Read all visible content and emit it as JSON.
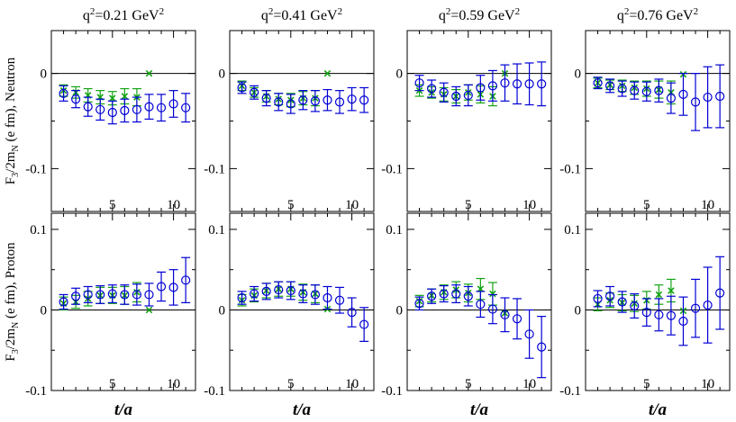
{
  "chart_data": {
    "type": "scatter",
    "columns": [
      {
        "q2_value": "0.21"
      },
      {
        "q2_value": "0.41"
      },
      {
        "q2_value": "0.59"
      },
      {
        "q2_value": "0.76"
      }
    ],
    "q2_prefix": "q",
    "q2_exponent": "2",
    "q2_unit": "GeV",
    "unit_exponent": "2",
    "x_label": "t/a",
    "x_ticks": [
      "5",
      "10"
    ],
    "xlim": [
      0,
      11.8
    ],
    "rows": [
      {
        "name": "Neutron",
        "ylabel_main": "F",
        "ylabel_sub3": "3",
        "ylabel_mid": "/2m",
        "ylabel_subN": "N",
        "ylabel_rest": " (e fm), Neutron",
        "ylim": [
          -0.145,
          0.045
        ],
        "y_ticks": [
          "0",
          "-0.1"
        ],
        "y_tick_values": [
          0,
          -0.1
        ]
      },
      {
        "name": "Proton",
        "ylabel_main": "F",
        "ylabel_sub3": "3",
        "ylabel_mid": "/2m",
        "ylabel_subN": "N",
        "ylabel_rest": " (e fm), Proton",
        "ylim": [
          -0.1,
          0.12
        ],
        "y_ticks": [
          "0.1",
          "0",
          "-0.1"
        ],
        "y_tick_values": [
          0.1,
          0,
          -0.1
        ]
      }
    ],
    "series_styles": [
      {
        "name": "blue circles",
        "color": "#0000d4",
        "marker": "circle"
      },
      {
        "name": "green crosses",
        "color": "#13a313",
        "marker": "x"
      }
    ],
    "panels": [
      {
        "row": 0,
        "col": 0,
        "blue": [
          [
            1,
            -0.021,
            0.008
          ],
          [
            2,
            -0.027,
            0.009
          ],
          [
            3,
            -0.035,
            0.01
          ],
          [
            4,
            -0.038,
            0.011
          ],
          [
            5,
            -0.041,
            0.012
          ],
          [
            6,
            -0.039,
            0.012
          ],
          [
            7,
            -0.038,
            0.013
          ],
          [
            8,
            -0.035,
            0.013
          ],
          [
            9,
            -0.036,
            0.014
          ],
          [
            10,
            -0.032,
            0.014
          ],
          [
            11,
            -0.036,
            0.015
          ]
        ],
        "green": [
          [
            1,
            -0.018,
            0.006
          ],
          [
            2,
            -0.02,
            0.006
          ],
          [
            3,
            -0.023,
            0.007
          ],
          [
            4,
            -0.025,
            0.007
          ],
          [
            5,
            -0.026,
            0.007
          ],
          [
            6,
            -0.024,
            0.008
          ],
          [
            7,
            -0.025,
            0.009
          ],
          [
            8,
            0.0,
            0.0
          ]
        ]
      },
      {
        "row": 0,
        "col": 1,
        "blue": [
          [
            1,
            -0.015,
            0.006
          ],
          [
            2,
            -0.02,
            0.007
          ],
          [
            3,
            -0.026,
            0.008
          ],
          [
            4,
            -0.03,
            0.009
          ],
          [
            5,
            -0.032,
            0.01
          ],
          [
            6,
            -0.028,
            0.01
          ],
          [
            7,
            -0.029,
            0.011
          ],
          [
            8,
            -0.028,
            0.011
          ],
          [
            9,
            -0.03,
            0.012
          ],
          [
            10,
            -0.027,
            0.012
          ],
          [
            11,
            -0.028,
            0.013
          ]
        ],
        "green": [
          [
            1,
            -0.013,
            0.005
          ],
          [
            2,
            -0.02,
            0.005
          ],
          [
            3,
            -0.024,
            0.006
          ],
          [
            4,
            -0.027,
            0.006
          ],
          [
            5,
            -0.028,
            0.007
          ],
          [
            6,
            -0.026,
            0.007
          ],
          [
            7,
            -0.026,
            0.008
          ],
          [
            8,
            0.0,
            0.0
          ]
        ]
      },
      {
        "row": 0,
        "col": 2,
        "blue": [
          [
            1,
            -0.01,
            0.008
          ],
          [
            2,
            -0.016,
            0.009
          ],
          [
            3,
            -0.02,
            0.01
          ],
          [
            4,
            -0.024,
            0.01
          ],
          [
            5,
            -0.023,
            0.011
          ],
          [
            6,
            -0.015,
            0.013
          ],
          [
            7,
            -0.013,
            0.016
          ],
          [
            8,
            -0.01,
            0.019
          ],
          [
            9,
            -0.011,
            0.021
          ],
          [
            10,
            -0.011,
            0.022
          ],
          [
            11,
            -0.011,
            0.023
          ]
        ],
        "green": [
          [
            1,
            -0.018,
            0.006
          ],
          [
            2,
            -0.02,
            0.006
          ],
          [
            3,
            -0.022,
            0.007
          ],
          [
            4,
            -0.024,
            0.007
          ],
          [
            5,
            -0.02,
            0.008
          ],
          [
            6,
            -0.022,
            0.009
          ],
          [
            7,
            -0.024,
            0.01
          ],
          [
            8,
            0.0,
            0.0
          ]
        ]
      },
      {
        "row": 0,
        "col": 3,
        "blue": [
          [
            1,
            -0.01,
            0.006
          ],
          [
            2,
            -0.013,
            0.007
          ],
          [
            3,
            -0.016,
            0.008
          ],
          [
            4,
            -0.018,
            0.009
          ],
          [
            5,
            -0.019,
            0.01
          ],
          [
            6,
            -0.018,
            0.012
          ],
          [
            7,
            -0.026,
            0.016
          ],
          [
            8,
            -0.022,
            0.022
          ],
          [
            9,
            -0.03,
            0.03
          ],
          [
            10,
            -0.025,
            0.032
          ],
          [
            11,
            -0.024,
            0.033
          ]
        ],
        "green": [
          [
            1,
            -0.01,
            0.005
          ],
          [
            2,
            -0.012,
            0.005
          ],
          [
            3,
            -0.013,
            0.006
          ],
          [
            4,
            -0.015,
            0.007
          ],
          [
            5,
            -0.016,
            0.008
          ],
          [
            6,
            -0.017,
            0.009
          ],
          [
            7,
            -0.02,
            0.012
          ],
          [
            8,
            -0.001,
            0.0
          ]
        ]
      },
      {
        "row": 1,
        "col": 0,
        "blue": [
          [
            1,
            0.01,
            0.009
          ],
          [
            2,
            0.017,
            0.01
          ],
          [
            3,
            0.019,
            0.01
          ],
          [
            4,
            0.019,
            0.011
          ],
          [
            5,
            0.02,
            0.011
          ],
          [
            6,
            0.019,
            0.012
          ],
          [
            7,
            0.019,
            0.013
          ],
          [
            8,
            0.019,
            0.014
          ],
          [
            9,
            0.029,
            0.018
          ],
          [
            10,
            0.028,
            0.022
          ],
          [
            11,
            0.037,
            0.028
          ]
        ],
        "green": [
          [
            1,
            0.008,
            0.008
          ],
          [
            2,
            0.01,
            0.008
          ],
          [
            3,
            0.014,
            0.009
          ],
          [
            4,
            0.018,
            0.01
          ],
          [
            5,
            0.018,
            0.01
          ],
          [
            6,
            0.018,
            0.011
          ],
          [
            7,
            0.022,
            0.012
          ],
          [
            8,
            0.0,
            0.0
          ]
        ]
      },
      {
        "row": 1,
        "col": 1,
        "blue": [
          [
            1,
            0.015,
            0.008
          ],
          [
            2,
            0.02,
            0.009
          ],
          [
            3,
            0.023,
            0.01
          ],
          [
            4,
            0.025,
            0.01
          ],
          [
            5,
            0.024,
            0.011
          ],
          [
            6,
            0.02,
            0.011
          ],
          [
            7,
            0.019,
            0.012
          ],
          [
            8,
            0.015,
            0.014
          ],
          [
            9,
            0.012,
            0.016
          ],
          [
            10,
            -0.003,
            0.018
          ],
          [
            11,
            -0.018,
            0.021
          ]
        ],
        "green": [
          [
            1,
            0.012,
            0.007
          ],
          [
            2,
            0.018,
            0.008
          ],
          [
            3,
            0.024,
            0.009
          ],
          [
            4,
            0.026,
            0.009
          ],
          [
            5,
            0.026,
            0.009
          ],
          [
            6,
            0.022,
            0.01
          ],
          [
            7,
            0.02,
            0.011
          ],
          [
            8,
            0.001,
            0.0
          ]
        ]
      },
      {
        "row": 1,
        "col": 2,
        "blue": [
          [
            1,
            0.008,
            0.008
          ],
          [
            2,
            0.017,
            0.009
          ],
          [
            3,
            0.02,
            0.01
          ],
          [
            4,
            0.02,
            0.011
          ],
          [
            5,
            0.017,
            0.012
          ],
          [
            6,
            0.007,
            0.016
          ],
          [
            7,
            0.001,
            0.018
          ],
          [
            8,
            -0.006,
            0.021
          ],
          [
            9,
            -0.011,
            0.025
          ],
          [
            10,
            -0.03,
            0.03
          ],
          [
            11,
            -0.046,
            0.038
          ]
        ],
        "green": [
          [
            1,
            0.011,
            0.007
          ],
          [
            2,
            0.018,
            0.008
          ],
          [
            3,
            0.022,
            0.009
          ],
          [
            4,
            0.025,
            0.01
          ],
          [
            5,
            0.021,
            0.011
          ],
          [
            6,
            0.026,
            0.013
          ],
          [
            7,
            0.02,
            0.014
          ],
          [
            8,
            -0.004,
            0.0
          ]
        ]
      },
      {
        "row": 1,
        "col": 3,
        "blue": [
          [
            1,
            0.014,
            0.01
          ],
          [
            2,
            0.017,
            0.012
          ],
          [
            3,
            0.01,
            0.013
          ],
          [
            4,
            0.005,
            0.015
          ],
          [
            5,
            -0.003,
            0.017
          ],
          [
            6,
            -0.006,
            0.02
          ],
          [
            7,
            -0.007,
            0.024
          ],
          [
            8,
            -0.014,
            0.03
          ],
          [
            9,
            0.002,
            0.036
          ],
          [
            10,
            0.006,
            0.047
          ],
          [
            11,
            0.021,
            0.045
          ]
        ],
        "green": [
          [
            1,
            0.007,
            0.008
          ],
          [
            2,
            0.012,
            0.009
          ],
          [
            3,
            0.009,
            0.01
          ],
          [
            4,
            0.008,
            0.01
          ],
          [
            5,
            0.012,
            0.011
          ],
          [
            6,
            0.019,
            0.012
          ],
          [
            7,
            0.024,
            0.014
          ],
          [
            8,
            -0.001,
            0.0
          ]
        ]
      }
    ]
  }
}
